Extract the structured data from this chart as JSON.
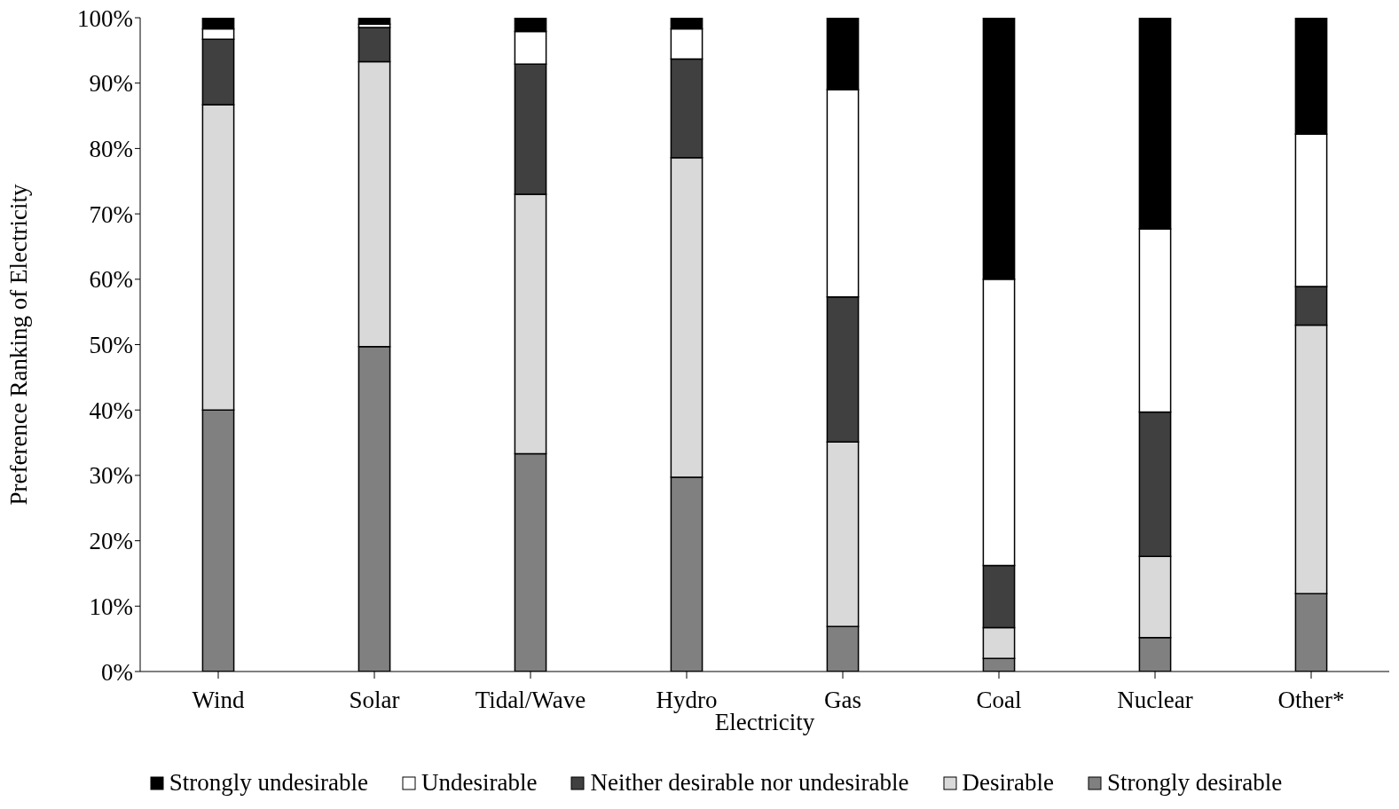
{
  "chart_data": {
    "type": "bar",
    "stacked": true,
    "xlabel": "Electricity",
    "ylabel": "Preference Ranking of Electricity",
    "categories": [
      "Wind",
      "Solar",
      "Tidal/Wave",
      "Hydro",
      "Gas",
      "Coal",
      "Nuclear",
      "Other*"
    ],
    "series": [
      {
        "name": "Strongly desirable",
        "color": "#808080",
        "values": [
          40,
          49.7,
          33.3,
          29.7,
          6.9,
          2.0,
          5.2,
          11.9
        ]
      },
      {
        "name": "Desirable",
        "color": "#d9d9d9",
        "values": [
          46.7,
          43.6,
          39.7,
          48.9,
          28.2,
          4.7,
          12.4,
          41.1
        ]
      },
      {
        "name": "Neither desirable nor undesirable",
        "color": "#404040",
        "values": [
          10,
          5.2,
          19.9,
          15.1,
          22.2,
          9.5,
          22.1,
          5.9
        ]
      },
      {
        "name": "Undesirable",
        "color": "#ffffff",
        "values": [
          1.6,
          0.5,
          5.0,
          4.6,
          31.7,
          43.8,
          28.0,
          23.3
        ]
      },
      {
        "name": "Strongly undesirable",
        "color": "#000000",
        "values": [
          1.7,
          1.0,
          2.1,
          1.7,
          11.0,
          40.0,
          32.3,
          17.8
        ]
      }
    ],
    "ylim": [
      0,
      100
    ],
    "yticks": [
      {
        "value": 0,
        "label": "0%"
      },
      {
        "value": 10,
        "label": "10%"
      },
      {
        "value": 20,
        "label": "20%"
      },
      {
        "value": 30,
        "label": "30%"
      },
      {
        "value": 40,
        "label": "40%"
      },
      {
        "value": 50,
        "label": "50%"
      },
      {
        "value": 60,
        "label": "60%"
      },
      {
        "value": 70,
        "label": "70%"
      },
      {
        "value": 80,
        "label": "80%"
      },
      {
        "value": 90,
        "label": "90%"
      },
      {
        "value": 100,
        "label": "100%"
      }
    ],
    "grid": false,
    "legend": "bottom"
  }
}
